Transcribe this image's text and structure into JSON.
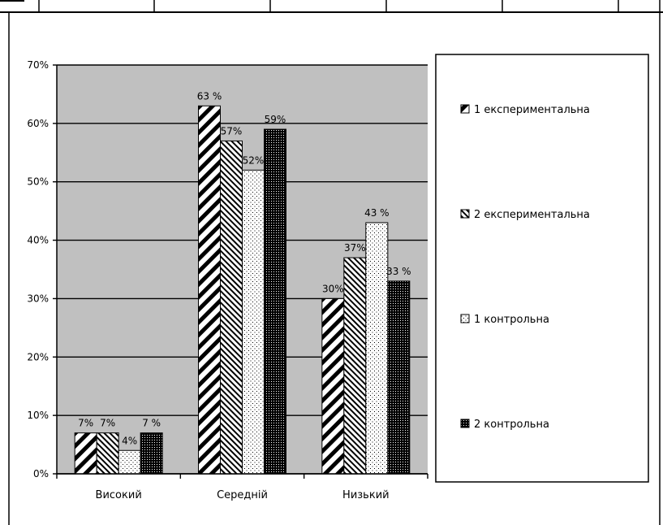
{
  "chart_data": {
    "type": "bar",
    "categories": [
      "Високий",
      "Середній",
      "Низький"
    ],
    "series": [
      {
        "name": "1 експериментальна",
        "values": [
          7,
          63,
          30
        ],
        "labels": [
          "7%",
          "63 %",
          "30%"
        ],
        "pattern": "diag-wide"
      },
      {
        "name": "2 експериментальна",
        "values": [
          7,
          57,
          37
        ],
        "labels": [
          "7%",
          "57%",
          "37%"
        ],
        "pattern": "diag-fine"
      },
      {
        "name": "1 контрольна",
        "values": [
          4,
          52,
          43
        ],
        "labels": [
          "4%",
          "52%",
          "43 %"
        ],
        "pattern": "dots-sparse"
      },
      {
        "name": "2  контрольна",
        "values": [
          7,
          59,
          33
        ],
        "labels": [
          "7 %",
          "59%",
          "33 %"
        ],
        "pattern": "dots-dense"
      }
    ],
    "yticks": [
      "0%",
      "10%",
      "20%",
      "30%",
      "40%",
      "50%",
      "60%",
      "70%"
    ],
    "ylim": [
      0,
      70
    ],
    "grid": true,
    "legend_position": "right",
    "colors": {
      "plot_background": "#c0c0c0",
      "bar_fill": "#ffffff",
      "bar_ink": "#000000"
    }
  }
}
